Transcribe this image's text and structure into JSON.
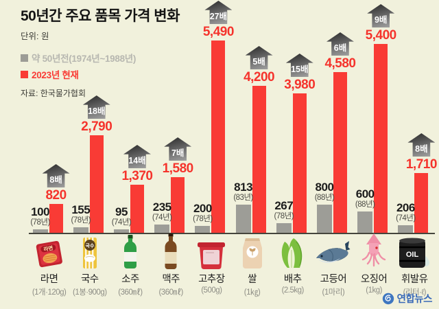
{
  "header": {
    "title": "50년간 주요 품목 가격 변화",
    "unit": "단위: 원",
    "legend": [
      {
        "label": "약 50년전(1974년~1988년)",
        "swatch_color": "#9c9c96",
        "text_color": "#b7b7b0"
      },
      {
        "label": "2023년 현재",
        "swatch_color": "#f93b35",
        "text_color": "#f93b35"
      }
    ],
    "source": "자료: 한국물가협회"
  },
  "brand": {
    "name": "연합뉴스",
    "color": "#3a6ab8"
  },
  "colors": {
    "background": "#f1f1dc",
    "bar_old": "#9d9d97",
    "bar_new": "#f93b35",
    "badge": "#5a5a5a"
  },
  "chart_data": {
    "type": "bar",
    "title": "50년간 주요 품목 가격 변화",
    "unit": "원",
    "legend_position": "top-left",
    "grid": false,
    "ylim": [
      0,
      5490
    ],
    "series": [
      {
        "name": "약 50년전(1974년~1988년)",
        "color": "#9d9d97",
        "values": [
          100,
          155,
          95,
          235,
          200,
          813,
          267,
          800,
          600,
          206
        ]
      },
      {
        "name": "2023년 현재",
        "color": "#f93b35",
        "values": [
          820,
          2790,
          1370,
          1580,
          5490,
          4200,
          3980,
          4580,
          5400,
          1710
        ]
      }
    ],
    "categories": [
      "라면",
      "국수",
      "소주",
      "맥주",
      "고추장",
      "쌀",
      "배추",
      "고등어",
      "오징어",
      "휘발유"
    ],
    "items": [
      {
        "name": "라면",
        "quantity": "(1개·120g)",
        "old_value": "100",
        "old_year": "(78년)",
        "old_num": 100,
        "new_value": "820",
        "new_num": 820,
        "multiplier": "8배",
        "icon": "ramen"
      },
      {
        "name": "국수",
        "quantity": "(1봉·900g)",
        "old_value": "155",
        "old_year": "(78년)",
        "old_num": 155,
        "new_value": "2,790",
        "new_num": 2790,
        "multiplier": "18배",
        "icon": "noodles"
      },
      {
        "name": "소주",
        "quantity": "(360㎖)",
        "old_value": "95",
        "old_year": "(74년)",
        "old_num": 95,
        "new_value": "1,370",
        "new_num": 1370,
        "multiplier": "14배",
        "icon": "soju"
      },
      {
        "name": "맥주",
        "quantity": "(360㎖)",
        "old_value": "235",
        "old_year": "(74년)",
        "old_num": 235,
        "new_value": "1,580",
        "new_num": 1580,
        "multiplier": "7배",
        "icon": "beer"
      },
      {
        "name": "고추장",
        "quantity": "(500g)",
        "old_value": "200",
        "old_year": "(78년)",
        "old_num": 200,
        "new_value": "5,490",
        "new_num": 5490,
        "multiplier": "27배",
        "icon": "gochujang"
      },
      {
        "name": "쌀",
        "quantity": "(1㎏)",
        "old_value": "813",
        "old_year": "(83년)",
        "old_num": 813,
        "new_value": "4,200",
        "new_num": 4200,
        "multiplier": "5배",
        "icon": "rice"
      },
      {
        "name": "배추",
        "quantity": "(2.5kg)",
        "old_value": "267",
        "old_year": "(78년)",
        "old_num": 267,
        "new_value": "3,980",
        "new_num": 3980,
        "multiplier": "15배",
        "icon": "cabbage"
      },
      {
        "name": "고등어",
        "quantity": "(1마리)",
        "old_value": "800",
        "old_year": "(88년)",
        "old_num": 800,
        "new_value": "4,580",
        "new_num": 4580,
        "multiplier": "6배",
        "icon": "mackerel"
      },
      {
        "name": "오징어",
        "quantity": "(1kg)",
        "old_value": "600",
        "old_year": "(88년)",
        "old_num": 600,
        "new_value": "5,400",
        "new_num": 5400,
        "multiplier": "9배",
        "icon": "squid"
      },
      {
        "name": "휘발유",
        "quantity": "(리터·ℓ)",
        "old_value": "206",
        "old_year": "(74년)",
        "old_num": 206,
        "new_value": "1,710",
        "new_num": 1710,
        "multiplier": "8배",
        "icon": "oil"
      }
    ]
  }
}
